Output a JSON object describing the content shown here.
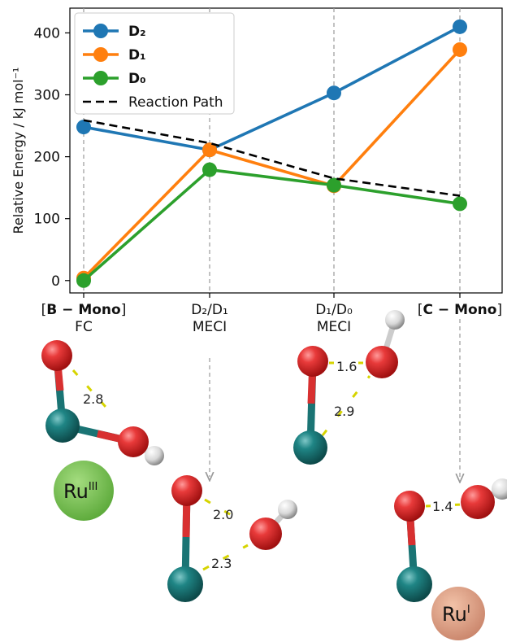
{
  "chart_data": {
    "type": "line",
    "ylabel": "Relative Energy / kJ mol⁻¹",
    "ylim": [
      -20,
      440
    ],
    "yticks": [
      0,
      100,
      200,
      300,
      400
    ],
    "grid": "vertical dashed lines at each category",
    "legend_position": "top-left",
    "categories": [
      {
        "bold": "[B − Mono]",
        "sub": "FC"
      },
      {
        "bold": "",
        "main": "D₂/D₁",
        "sub": "MECI"
      },
      {
        "bold": "",
        "main": "D₁/D₀",
        "sub": "MECI"
      },
      {
        "bold": "[C − Mono]",
        "sub": ""
      }
    ],
    "series": [
      {
        "name": "D₂",
        "color": "#1f77b4",
        "style": "solid-marker",
        "values": [
          248,
          211,
          303,
          410
        ]
      },
      {
        "name": "D₁",
        "color": "#ff7f0e",
        "style": "solid-marker",
        "values": [
          4,
          211,
          153,
          373
        ]
      },
      {
        "name": "D₀",
        "color": "#2ca02c",
        "style": "solid-marker",
        "values": [
          0,
          179,
          154,
          124
        ]
      },
      {
        "name": "Reaction Path",
        "color": "#000000",
        "style": "dashed",
        "values": [
          259,
          222,
          165,
          137
        ]
      }
    ]
  },
  "structures": {
    "bond_labels": [
      "2.8",
      "2.0",
      "2.3",
      "1.6",
      "2.9",
      "1.4"
    ],
    "badges": [
      {
        "base": "Ru",
        "sup": "III",
        "color": "#6cbf4a"
      },
      {
        "base": "Ru",
        "sup": "I",
        "color": "#d9987a"
      }
    ]
  }
}
